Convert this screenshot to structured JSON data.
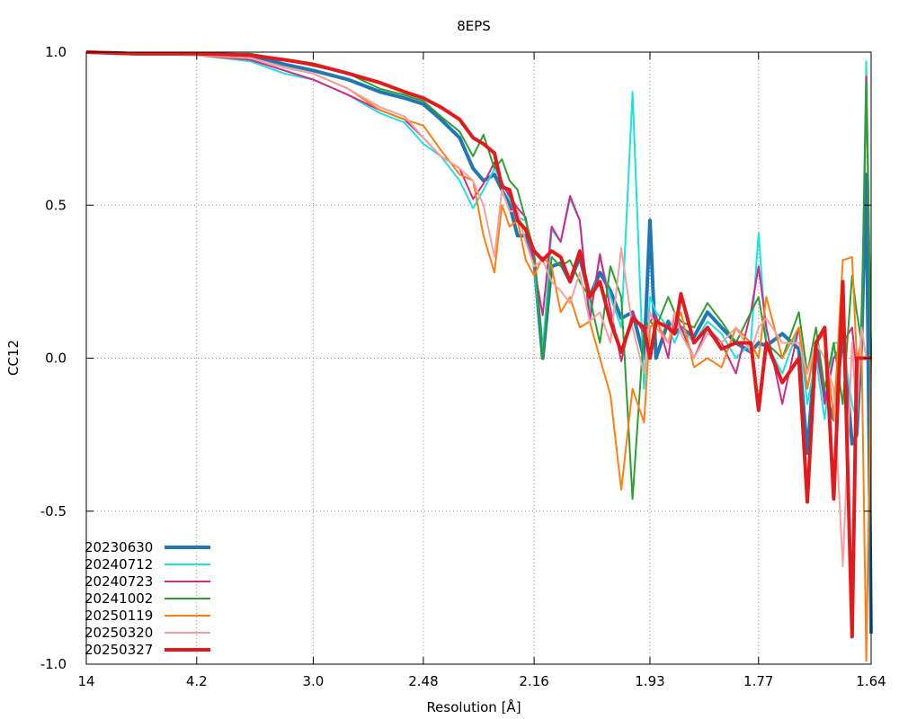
{
  "chart_data": {
    "type": "line",
    "title": "8EPS",
    "xlabel": "Resolution [Å]",
    "ylabel": "CC12",
    "ylim": [
      -1.0,
      1.0
    ],
    "y_ticks": [
      "1.0",
      "0.5",
      "0.0",
      "-0.5",
      "-1.0"
    ],
    "x_ticks": [
      "14",
      "4.2",
      "3.0",
      "2.48",
      "2.16",
      "1.93",
      "1.77",
      "1.64"
    ],
    "x_tick_values": [
      14,
      4.2,
      3.0,
      2.48,
      2.16,
      1.93,
      1.77,
      1.64
    ],
    "grid": true,
    "legend_position": "bottom-left",
    "series": [
      {
        "name": "20230630",
        "color": "#1f77b4",
        "width": 4,
        "x": [
          14,
          6.0,
          4.2,
          3.5,
          3.2,
          3.0,
          2.8,
          2.65,
          2.55,
          2.48,
          2.42,
          2.36,
          2.32,
          2.29,
          2.26,
          2.24,
          2.22,
          2.2,
          2.18,
          2.16,
          2.14,
          2.12,
          2.1,
          2.08,
          2.06,
          2.04,
          2.02,
          2.0,
          1.98,
          1.96,
          1.94,
          1.93,
          1.92,
          1.9,
          1.89,
          1.88,
          1.86,
          1.84,
          1.82,
          1.8,
          1.78,
          1.77,
          1.76,
          1.74,
          1.72,
          1.71,
          1.7,
          1.69,
          1.68,
          1.67,
          1.66,
          1.655,
          1.65,
          1.645,
          1.64
        ],
        "y": [
          1.0,
          0.995,
          0.995,
          0.99,
          0.96,
          0.94,
          0.91,
          0.87,
          0.85,
          0.83,
          0.78,
          0.72,
          0.62,
          0.58,
          0.6,
          0.55,
          0.5,
          0.4,
          0.4,
          0.32,
          0.0,
          0.3,
          0.31,
          0.25,
          0.33,
          0.2,
          0.28,
          0.22,
          0.13,
          0.15,
          0.0,
          0.45,
          0.0,
          0.12,
          0.08,
          0.1,
          0.07,
          0.15,
          0.1,
          0.05,
          0.02,
          0.05,
          0.04,
          0.08,
          0.03,
          -0.31,
          0.05,
          -0.12,
          -0.2,
          0.08,
          -0.28,
          -0.25,
          0.05,
          0.6,
          -0.9
        ]
      },
      {
        "name": "20240712",
        "color": "#17e3e3",
        "width": 2,
        "x": [
          14,
          6.0,
          4.2,
          3.5,
          3.2,
          3.0,
          2.8,
          2.65,
          2.55,
          2.48,
          2.42,
          2.36,
          2.32,
          2.29,
          2.26,
          2.24,
          2.22,
          2.2,
          2.18,
          2.16,
          2.14,
          2.12,
          2.1,
          2.08,
          2.06,
          2.04,
          2.02,
          2.0,
          1.98,
          1.96,
          1.94,
          1.93,
          1.92,
          1.9,
          1.89,
          1.88,
          1.86,
          1.84,
          1.82,
          1.8,
          1.78,
          1.77,
          1.76,
          1.74,
          1.72,
          1.71,
          1.7,
          1.69,
          1.68,
          1.67,
          1.66,
          1.655,
          1.65,
          1.645,
          1.64
        ],
        "y": [
          1.0,
          0.995,
          0.99,
          0.97,
          0.93,
          0.91,
          0.86,
          0.8,
          0.77,
          0.7,
          0.66,
          0.58,
          0.49,
          0.55,
          0.62,
          0.58,
          0.52,
          0.46,
          0.45,
          0.3,
          0.02,
          0.42,
          0.38,
          0.52,
          0.45,
          0.15,
          0.33,
          0.2,
          0.1,
          0.87,
          -0.1,
          0.2,
          0.15,
          0.1,
          0.05,
          0.1,
          0.05,
          0.12,
          0.08,
          0.0,
          0.05,
          0.41,
          0.05,
          -0.05,
          0.1,
          -0.15,
          0.0,
          -0.2,
          0.05,
          0.05,
          -0.15,
          -0.2,
          0.1,
          0.97,
          0.0
        ]
      },
      {
        "name": "20240723",
        "color": "#d62788",
        "width": 2,
        "x": [
          14,
          6.0,
          4.2,
          3.5,
          3.2,
          3.0,
          2.8,
          2.65,
          2.55,
          2.48,
          2.42,
          2.36,
          2.32,
          2.29,
          2.26,
          2.24,
          2.22,
          2.2,
          2.18,
          2.16,
          2.14,
          2.12,
          2.1,
          2.08,
          2.06,
          2.04,
          2.02,
          2.0,
          1.98,
          1.96,
          1.94,
          1.93,
          1.92,
          1.9,
          1.89,
          1.88,
          1.86,
          1.84,
          1.82,
          1.8,
          1.78,
          1.77,
          1.76,
          1.74,
          1.72,
          1.71,
          1.7,
          1.69,
          1.68,
          1.67,
          1.66,
          1.655,
          1.65,
          1.645,
          1.64
        ],
        "y": [
          1.0,
          0.995,
          0.99,
          0.975,
          0.94,
          0.91,
          0.86,
          0.81,
          0.78,
          0.72,
          0.66,
          0.62,
          0.52,
          0.57,
          0.64,
          0.57,
          0.53,
          0.49,
          0.46,
          0.3,
          0.14,
          0.43,
          0.38,
          0.53,
          0.45,
          0.12,
          0.34,
          0.16,
          -0.01,
          0.15,
          0.08,
          0.12,
          0.14,
          0.0,
          0.15,
          0.1,
          0.0,
          0.1,
          0.05,
          -0.05,
          0.15,
          0.3,
          0.1,
          -0.15,
          0.1,
          -0.1,
          0.05,
          -0.15,
          0.0,
          0.05,
          0.1,
          -0.05,
          0.05,
          0.92,
          0.0
        ]
      },
      {
        "name": "20241002",
        "color": "#2ca02c",
        "width": 2,
        "x": [
          14,
          6.0,
          4.2,
          3.5,
          3.2,
          3.0,
          2.8,
          2.65,
          2.55,
          2.48,
          2.42,
          2.36,
          2.32,
          2.29,
          2.26,
          2.24,
          2.22,
          2.2,
          2.18,
          2.16,
          2.14,
          2.12,
          2.1,
          2.08,
          2.06,
          2.04,
          2.02,
          2.0,
          1.98,
          1.96,
          1.94,
          1.93,
          1.92,
          1.9,
          1.89,
          1.88,
          1.86,
          1.84,
          1.82,
          1.8,
          1.78,
          1.77,
          1.76,
          1.74,
          1.72,
          1.71,
          1.7,
          1.69,
          1.68,
          1.67,
          1.66,
          1.655,
          1.65,
          1.645,
          1.64
        ],
        "y": [
          1.0,
          0.995,
          0.995,
          0.995,
          0.975,
          0.955,
          0.93,
          0.88,
          0.86,
          0.84,
          0.79,
          0.74,
          0.66,
          0.73,
          0.62,
          0.65,
          0.58,
          0.55,
          0.45,
          0.35,
          0.0,
          0.33,
          0.3,
          0.32,
          0.25,
          0.2,
          0.05,
          0.3,
          0.2,
          -0.46,
          0.1,
          0.12,
          0.1,
          0.2,
          0.15,
          0.12,
          0.1,
          0.18,
          0.12,
          0.05,
          0.15,
          0.2,
          0.05,
          0.0,
          0.15,
          -0.05,
          0.1,
          -0.1,
          0.05,
          -0.15,
          0.27,
          0.15,
          0.05,
          0.9,
          0.0
        ]
      },
      {
        "name": "20250119",
        "color": "#ff7f0e",
        "width": 2,
        "x": [
          14,
          6.0,
          4.2,
          3.5,
          3.2,
          3.0,
          2.8,
          2.65,
          2.55,
          2.48,
          2.42,
          2.36,
          2.32,
          2.29,
          2.26,
          2.24,
          2.22,
          2.2,
          2.18,
          2.16,
          2.14,
          2.12,
          2.1,
          2.08,
          2.06,
          2.04,
          2.02,
          2.0,
          1.98,
          1.96,
          1.94,
          1.93,
          1.92,
          1.9,
          1.89,
          1.88,
          1.86,
          1.84,
          1.82,
          1.8,
          1.78,
          1.77,
          1.76,
          1.74,
          1.72,
          1.71,
          1.7,
          1.69,
          1.68,
          1.67,
          1.66,
          1.655,
          1.65,
          1.645,
          1.64
        ],
        "y": [
          1.0,
          0.995,
          0.99,
          0.98,
          0.95,
          0.93,
          0.88,
          0.81,
          0.78,
          0.76,
          0.68,
          0.6,
          0.58,
          0.4,
          0.28,
          0.5,
          0.43,
          0.45,
          0.32,
          0.27,
          0.33,
          0.3,
          0.15,
          0.2,
          0.1,
          0.12,
          0.0,
          -0.12,
          -0.43,
          -0.1,
          -0.21,
          0.1,
          0.12,
          0.05,
          0.1,
          0.15,
          -0.03,
          0.0,
          -0.03,
          0.1,
          0.05,
          0.0,
          0.2,
          0.0,
          0.1,
          -0.1,
          0.05,
          0.08,
          -0.2,
          0.32,
          0.33,
          0.0,
          0.05,
          -0.99,
          0.0
        ]
      },
      {
        "name": "20250320",
        "color": "#f4a0a0",
        "width": 2,
        "x": [
          14,
          6.0,
          4.2,
          3.5,
          3.2,
          3.0,
          2.8,
          2.65,
          2.55,
          2.48,
          2.42,
          2.36,
          2.32,
          2.29,
          2.26,
          2.24,
          2.22,
          2.2,
          2.18,
          2.16,
          2.14,
          2.12,
          2.1,
          2.08,
          2.06,
          2.04,
          2.02,
          2.0,
          1.98,
          1.96,
          1.94,
          1.93,
          1.92,
          1.9,
          1.89,
          1.88,
          1.86,
          1.84,
          1.82,
          1.8,
          1.78,
          1.77,
          1.76,
          1.74,
          1.72,
          1.71,
          1.7,
          1.69,
          1.68,
          1.67,
          1.66,
          1.655,
          1.65,
          1.645,
          1.64
        ],
        "y": [
          1.0,
          0.995,
          0.99,
          0.98,
          0.95,
          0.93,
          0.88,
          0.82,
          0.79,
          0.72,
          0.66,
          0.62,
          0.58,
          0.5,
          0.33,
          0.55,
          0.48,
          0.48,
          0.38,
          0.3,
          0.32,
          0.25,
          0.22,
          0.18,
          0.28,
          0.12,
          0.15,
          0.05,
          0.36,
          0.1,
          -0.05,
          0.15,
          0.1,
          0.05,
          0.15,
          0.08,
          0.0,
          0.08,
          0.05,
          0.1,
          0.02,
          0.1,
          0.13,
          0.05,
          0.05,
          -0.05,
          0.05,
          0.0,
          -0.1,
          -0.68,
          0.05,
          -0.2,
          0.1,
          0.0,
          0.0
        ]
      },
      {
        "name": "20250327",
        "color": "#e31a1c",
        "width": 4,
        "x": [
          14,
          6.0,
          4.2,
          3.5,
          3.2,
          3.0,
          2.8,
          2.65,
          2.55,
          2.48,
          2.42,
          2.36,
          2.32,
          2.29,
          2.26,
          2.24,
          2.22,
          2.2,
          2.18,
          2.16,
          2.14,
          2.12,
          2.1,
          2.08,
          2.06,
          2.04,
          2.02,
          2.0,
          1.98,
          1.96,
          1.94,
          1.93,
          1.92,
          1.9,
          1.89,
          1.88,
          1.86,
          1.84,
          1.82,
          1.8,
          1.78,
          1.77,
          1.76,
          1.74,
          1.72,
          1.71,
          1.7,
          1.69,
          1.68,
          1.67,
          1.66,
          1.655,
          1.65,
          1.645,
          1.64
        ],
        "y": [
          1.0,
          0.995,
          0.995,
          0.99,
          0.975,
          0.96,
          0.93,
          0.9,
          0.87,
          0.85,
          0.82,
          0.78,
          0.72,
          0.7,
          0.67,
          0.56,
          0.55,
          0.45,
          0.42,
          0.35,
          0.32,
          0.35,
          0.33,
          0.25,
          0.35,
          0.2,
          0.25,
          0.12,
          0.02,
          0.13,
          0.1,
          0.0,
          0.12,
          0.1,
          0.08,
          0.21,
          0.05,
          0.1,
          0.03,
          0.05,
          0.05,
          -0.17,
          0.05,
          -0.08,
          0.0,
          -0.47,
          0.05,
          0.1,
          -0.46,
          0.25,
          -0.91,
          0.0,
          0.0,
          0.0,
          0.0
        ]
      }
    ]
  }
}
